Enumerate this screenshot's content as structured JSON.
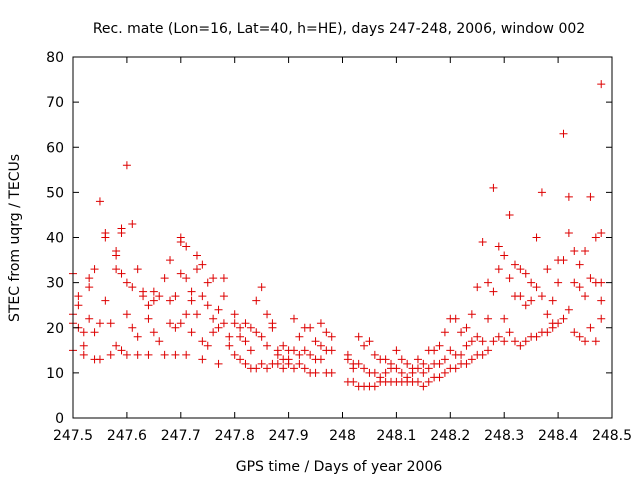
{
  "chart_data": {
    "type": "scatter",
    "title": "Rec. mate (Lon=16, Lat=40, h=HE), days 247-248, 2006, window 002",
    "xlabel": "GPS time / Days of year 2006",
    "ylabel": "STEC from uqrg / TECUs",
    "xlim": [
      247.5,
      248.5
    ],
    "ylim": [
      0,
      80
    ],
    "xticks": [
      247.5,
      247.6,
      247.7,
      247.8,
      247.9,
      248.0,
      248.1,
      248.2,
      248.3,
      248.4,
      248.5
    ],
    "xtick_labels": [
      "247.5",
      "247.6",
      "247.7",
      "247.8",
      "247.9",
      "248",
      "248.1",
      "248.2",
      "248.3",
      "248.4",
      "248.5"
    ],
    "yticks": [
      0,
      10,
      20,
      30,
      40,
      50,
      60,
      70,
      80
    ],
    "ytick_labels": [
      "0",
      "10",
      "20",
      "30",
      "40",
      "50",
      "60",
      "70",
      "80"
    ],
    "grid": false,
    "legend": "none",
    "marker": "plus",
    "marker_color": "#dd0000",
    "points": [
      [
        247.5,
        32
      ],
      [
        247.5,
        23
      ],
      [
        247.5,
        21
      ],
      [
        247.5,
        15
      ],
      [
        247.51,
        20
      ],
      [
        247.51,
        25
      ],
      [
        247.51,
        27
      ],
      [
        247.52,
        19
      ],
      [
        247.52,
        14
      ],
      [
        247.52,
        16
      ],
      [
        247.53,
        22
      ],
      [
        247.53,
        29
      ],
      [
        247.53,
        31
      ],
      [
        247.54,
        19
      ],
      [
        247.54,
        13
      ],
      [
        247.54,
        33
      ],
      [
        247.55,
        48
      ],
      [
        247.55,
        21
      ],
      [
        247.55,
        13
      ],
      [
        247.56,
        26
      ],
      [
        247.56,
        40
      ],
      [
        247.56,
        41
      ],
      [
        247.57,
        21
      ],
      [
        247.57,
        14
      ],
      [
        247.58,
        37
      ],
      [
        247.58,
        33
      ],
      [
        247.58,
        36
      ],
      [
        247.58,
        16
      ],
      [
        247.59,
        32
      ],
      [
        247.59,
        41
      ],
      [
        247.59,
        42
      ],
      [
        247.59,
        15
      ],
      [
        247.6,
        56
      ],
      [
        247.6,
        23
      ],
      [
        247.6,
        14
      ],
      [
        247.6,
        30
      ],
      [
        247.61,
        43
      ],
      [
        247.61,
        29
      ],
      [
        247.61,
        20
      ],
      [
        247.62,
        18
      ],
      [
        247.62,
        14
      ],
      [
        247.62,
        33
      ],
      [
        247.63,
        28
      ],
      [
        247.63,
        27
      ],
      [
        247.64,
        22
      ],
      [
        247.64,
        25
      ],
      [
        247.64,
        14
      ],
      [
        247.65,
        26
      ],
      [
        247.65,
        19
      ],
      [
        247.65,
        28
      ],
      [
        247.66,
        27
      ],
      [
        247.66,
        17
      ],
      [
        247.67,
        14
      ],
      [
        247.67,
        31
      ],
      [
        247.68,
        26
      ],
      [
        247.68,
        21
      ],
      [
        247.68,
        35
      ],
      [
        247.69,
        20
      ],
      [
        247.69,
        14
      ],
      [
        247.69,
        27
      ],
      [
        247.7,
        39
      ],
      [
        247.7,
        40
      ],
      [
        247.7,
        32
      ],
      [
        247.7,
        21
      ],
      [
        247.71,
        38
      ],
      [
        247.71,
        31
      ],
      [
        247.71,
        23
      ],
      [
        247.71,
        14
      ],
      [
        247.72,
        28
      ],
      [
        247.72,
        26
      ],
      [
        247.72,
        19
      ],
      [
        247.73,
        36
      ],
      [
        247.73,
        33
      ],
      [
        247.73,
        23
      ],
      [
        247.74,
        34
      ],
      [
        247.74,
        27
      ],
      [
        247.74,
        17
      ],
      [
        247.74,
        13
      ],
      [
        247.75,
        30
      ],
      [
        247.75,
        25
      ],
      [
        247.75,
        16
      ],
      [
        247.76,
        31
      ],
      [
        247.76,
        22
      ],
      [
        247.76,
        19
      ],
      [
        247.77,
        24
      ],
      [
        247.77,
        20
      ],
      [
        247.77,
        12
      ],
      [
        247.78,
        31
      ],
      [
        247.78,
        27
      ],
      [
        247.78,
        21
      ],
      [
        247.79,
        18
      ],
      [
        247.79,
        16
      ],
      [
        247.8,
        23
      ],
      [
        247.8,
        21
      ],
      [
        247.8,
        14
      ],
      [
        247.81,
        20
      ],
      [
        247.81,
        18
      ],
      [
        247.81,
        13
      ],
      [
        247.82,
        21
      ],
      [
        247.82,
        17
      ],
      [
        247.82,
        12
      ],
      [
        247.83,
        20
      ],
      [
        247.83,
        15
      ],
      [
        247.83,
        11
      ],
      [
        247.84,
        26
      ],
      [
        247.84,
        19
      ],
      [
        247.84,
        11
      ],
      [
        247.85,
        29
      ],
      [
        247.85,
        18
      ],
      [
        247.85,
        12
      ],
      [
        247.86,
        23
      ],
      [
        247.86,
        16
      ],
      [
        247.86,
        11
      ],
      [
        247.87,
        21
      ],
      [
        247.87,
        20
      ],
      [
        247.87,
        12
      ],
      [
        247.88,
        15
      ],
      [
        247.88,
        14
      ],
      [
        247.88,
        12
      ],
      [
        247.89,
        16
      ],
      [
        247.89,
        13
      ],
      [
        247.89,
        11
      ],
      [
        247.9,
        15
      ],
      [
        247.9,
        13
      ],
      [
        247.9,
        12
      ],
      [
        247.91,
        22
      ],
      [
        247.91,
        15
      ],
      [
        247.91,
        11
      ],
      [
        247.92,
        18
      ],
      [
        247.92,
        14
      ],
      [
        247.92,
        12
      ],
      [
        247.93,
        20
      ],
      [
        247.93,
        15
      ],
      [
        247.93,
        11
      ],
      [
        247.94,
        20
      ],
      [
        247.94,
        14
      ],
      [
        247.94,
        10
      ],
      [
        247.95,
        17
      ],
      [
        247.95,
        13
      ],
      [
        247.95,
        10
      ],
      [
        247.96,
        21
      ],
      [
        247.96,
        16
      ],
      [
        247.96,
        13
      ],
      [
        247.97,
        19
      ],
      [
        247.97,
        15
      ],
      [
        247.97,
        10
      ],
      [
        247.98,
        18
      ],
      [
        247.98,
        15
      ],
      [
        247.98,
        10
      ],
      [
        248.01,
        14
      ],
      [
        248.01,
        13
      ],
      [
        248.01,
        8
      ],
      [
        248.02,
        12
      ],
      [
        248.02,
        11
      ],
      [
        248.02,
        8
      ],
      [
        248.03,
        18
      ],
      [
        248.03,
        12
      ],
      [
        248.03,
        7
      ],
      [
        248.04,
        16
      ],
      [
        248.04,
        11
      ],
      [
        248.04,
        7
      ],
      [
        248.05,
        17
      ],
      [
        248.05,
        10
      ],
      [
        248.05,
        7
      ],
      [
        248.06,
        14
      ],
      [
        248.06,
        10
      ],
      [
        248.06,
        7
      ],
      [
        248.07,
        13
      ],
      [
        248.07,
        9
      ],
      [
        248.07,
        8
      ],
      [
        248.08,
        13
      ],
      [
        248.08,
        10
      ],
      [
        248.08,
        8
      ],
      [
        248.09,
        12
      ],
      [
        248.09,
        11
      ],
      [
        248.09,
        8
      ],
      [
        248.1,
        15
      ],
      [
        248.1,
        11
      ],
      [
        248.1,
        8
      ],
      [
        248.11,
        13
      ],
      [
        248.11,
        10
      ],
      [
        248.11,
        8
      ],
      [
        248.12,
        12
      ],
      [
        248.12,
        9
      ],
      [
        248.12,
        8
      ],
      [
        248.13,
        11
      ],
      [
        248.13,
        10
      ],
      [
        248.13,
        8
      ],
      [
        248.14,
        13
      ],
      [
        248.14,
        11
      ],
      [
        248.14,
        8
      ],
      [
        248.15,
        12
      ],
      [
        248.15,
        10
      ],
      [
        248.15,
        7
      ],
      [
        248.16,
        15
      ],
      [
        248.16,
        11
      ],
      [
        248.16,
        8
      ],
      [
        248.17,
        15
      ],
      [
        248.17,
        12
      ],
      [
        248.17,
        9
      ],
      [
        248.18,
        16
      ],
      [
        248.18,
        12
      ],
      [
        248.18,
        9
      ],
      [
        248.19,
        19
      ],
      [
        248.19,
        13
      ],
      [
        248.19,
        10
      ],
      [
        248.2,
        22
      ],
      [
        248.2,
        15
      ],
      [
        248.2,
        11
      ],
      [
        248.21,
        22
      ],
      [
        248.21,
        14
      ],
      [
        248.21,
        11
      ],
      [
        248.22,
        19
      ],
      [
        248.22,
        14
      ],
      [
        248.22,
        12
      ],
      [
        248.23,
        20
      ],
      [
        248.23,
        16
      ],
      [
        248.23,
        12
      ],
      [
        248.24,
        23
      ],
      [
        248.24,
        17
      ],
      [
        248.24,
        13
      ],
      [
        248.25,
        29
      ],
      [
        248.25,
        18
      ],
      [
        248.25,
        14
      ],
      [
        248.26,
        39
      ],
      [
        248.26,
        17
      ],
      [
        248.26,
        14
      ],
      [
        248.27,
        30
      ],
      [
        248.27,
        22
      ],
      [
        248.27,
        15
      ],
      [
        248.28,
        51
      ],
      [
        248.28,
        28
      ],
      [
        248.28,
        17
      ],
      [
        248.29,
        38
      ],
      [
        248.29,
        33
      ],
      [
        248.29,
        18
      ],
      [
        248.3,
        36
      ],
      [
        248.3,
        22
      ],
      [
        248.3,
        17
      ],
      [
        248.31,
        45
      ],
      [
        248.31,
        31
      ],
      [
        248.31,
        19
      ],
      [
        248.32,
        34
      ],
      [
        248.32,
        27
      ],
      [
        248.32,
        17
      ],
      [
        248.33,
        33
      ],
      [
        248.33,
        27
      ],
      [
        248.33,
        16
      ],
      [
        248.34,
        32
      ],
      [
        248.34,
        25
      ],
      [
        248.34,
        17
      ],
      [
        248.35,
        30
      ],
      [
        248.35,
        26
      ],
      [
        248.35,
        18
      ],
      [
        248.36,
        40
      ],
      [
        248.36,
        29
      ],
      [
        248.36,
        18
      ],
      [
        248.37,
        50
      ],
      [
        248.37,
        27
      ],
      [
        248.37,
        19
      ],
      [
        248.38,
        33
      ],
      [
        248.38,
        23
      ],
      [
        248.38,
        19
      ],
      [
        248.39,
        26
      ],
      [
        248.39,
        21
      ],
      [
        248.39,
        20
      ],
      [
        248.4,
        35
      ],
      [
        248.4,
        30
      ],
      [
        248.4,
        21
      ],
      [
        248.41,
        63
      ],
      [
        248.41,
        35
      ],
      [
        248.41,
        22
      ],
      [
        248.42,
        49
      ],
      [
        248.42,
        41
      ],
      [
        248.42,
        24
      ],
      [
        248.43,
        37
      ],
      [
        248.43,
        30
      ],
      [
        248.43,
        19
      ],
      [
        248.44,
        34
      ],
      [
        248.44,
        29
      ],
      [
        248.44,
        18
      ],
      [
        248.45,
        37
      ],
      [
        248.45,
        27
      ],
      [
        248.45,
        17
      ],
      [
        248.46,
        49
      ],
      [
        248.46,
        31
      ],
      [
        248.46,
        20
      ],
      [
        248.47,
        40
      ],
      [
        248.47,
        30
      ],
      [
        248.47,
        17
      ],
      [
        248.48,
        74
      ],
      [
        248.48,
        41
      ],
      [
        248.48,
        22
      ],
      [
        248.48,
        30
      ],
      [
        248.48,
        26
      ]
    ]
  }
}
